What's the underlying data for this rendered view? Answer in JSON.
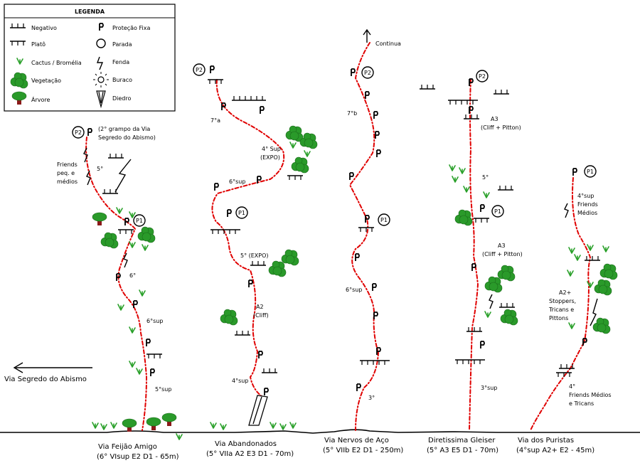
{
  "legend": {
    "title": "LEGENDA",
    "items": [
      {
        "symbol": "negativo-icon",
        "label": "Negativo"
      },
      {
        "symbol": "bolt-icon",
        "label": "Proteção Fixa"
      },
      {
        "symbol": "plateau-icon",
        "label": "Platô"
      },
      {
        "symbol": "anchor-circle-icon",
        "label": "Parada"
      },
      {
        "symbol": "cactus-icon",
        "label": "Cactus / Bromélia"
      },
      {
        "symbol": "crack-icon",
        "label": "Fenda"
      },
      {
        "symbol": "bush-icon",
        "label": "Vegetação"
      },
      {
        "symbol": "hole-icon",
        "label": "Buraco"
      },
      {
        "symbol": "tree-icon",
        "label": "Árvore"
      },
      {
        "symbol": "dihedral-icon",
        "label": "Diedro"
      }
    ]
  },
  "symbols": {
    "bolt": "P",
    "anchor_p1": "P1",
    "anchor_p2": "P2"
  },
  "left_arrow_label": "Via Segredo do Abismo",
  "continua": "Continua",
  "routes": [
    {
      "name": "Via Feijão Amigo",
      "grade": "(6° VIsup E2 D1 - 65m)",
      "notes": {
        "p2_note": [
          "(2° grampo da Via",
          "Segredo do Abismo)"
        ],
        "friends": [
          "Friends",
          "peq. e",
          "médios"
        ],
        "g1": "5°",
        "g2": "6°",
        "g3": "6°sup",
        "g4": "5°sup"
      }
    },
    {
      "name": "Via Abandonados",
      "grade": "(5° VIIa A2 E3 D1 - 70m)",
      "notes": {
        "g1": "7°a",
        "g2": [
          "4° Sup",
          "(EXPO)"
        ],
        "g3": "6°sup",
        "g4": "5° (EXPO)",
        "g5": [
          "A2",
          "(Cliff)"
        ],
        "g6": "4°sup"
      }
    },
    {
      "name": "Via Nervos de Aço",
      "grade": "(5° VIIb E2 D1 - 250m)",
      "notes": {
        "g1": "7°b",
        "g2": "6°sup",
        "g3": "3°"
      }
    },
    {
      "name": "Diretissima Gleiser",
      "grade": "(5° A3 E5 D1 - 70m)",
      "notes": {
        "a3_top": [
          "A3",
          "(Cliff + Pitton)"
        ],
        "g1": "5°",
        "a3_mid": [
          "A3",
          "(Cliff + Pitton)"
        ],
        "g2": "3°sup"
      }
    },
    {
      "name": "Via dos Puristas",
      "grade": "(4°sup A2+ E2 - 45m)",
      "notes": {
        "top": [
          "4°sup",
          "Friends",
          "Médios"
        ],
        "mid": [
          "A2+",
          "Stoppers,",
          "Tricans e",
          "Pittons"
        ],
        "bottom": [
          "4°",
          "Friends Médios",
          "e Tricans"
        ]
      }
    }
  ]
}
